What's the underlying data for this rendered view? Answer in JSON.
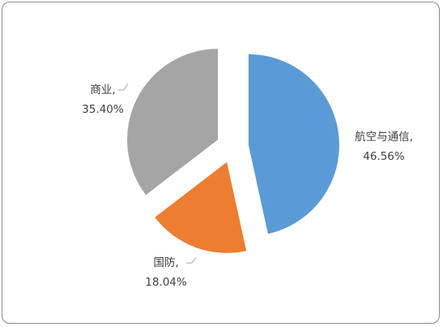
{
  "chart_data": {
    "type": "pie",
    "title": "",
    "style": "exploded",
    "slices": [
      {
        "name": "航空与通信",
        "value": 46.56,
        "value_label": "46.56%",
        "color": "#5b9bd5"
      },
      {
        "name": "国防",
        "value": 18.04,
        "value_label": "18.04%",
        "color": "#ed7d31"
      },
      {
        "name": "商业",
        "value": 35.4,
        "value_label": "35.40%",
        "color": "#a5a5a5"
      }
    ],
    "data_labels": [
      "category",
      "percent"
    ],
    "legend": "none"
  }
}
